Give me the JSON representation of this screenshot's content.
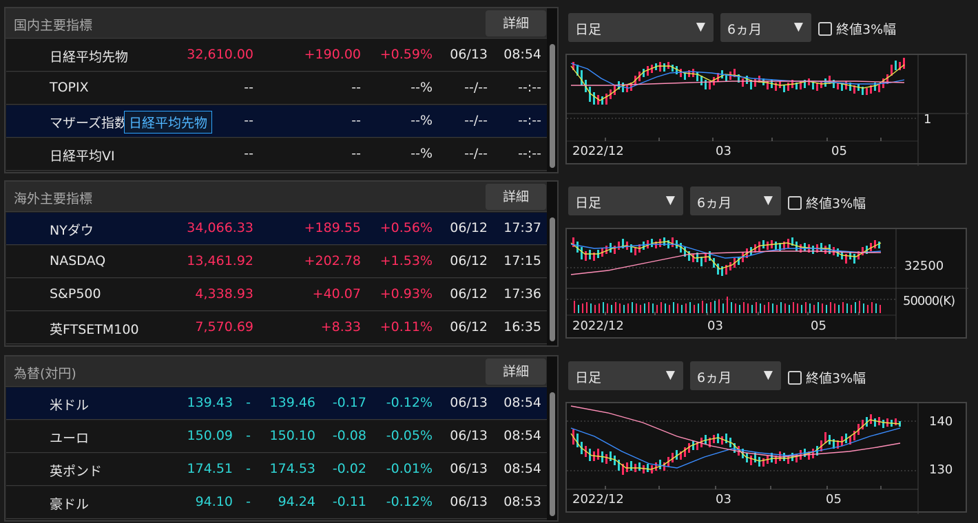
{
  "domestic": {
    "title": "国内主要指標",
    "detail_label": "詳細",
    "rows": [
      {
        "name": "日経平均先物",
        "price": "32,610.00",
        "change": "+190.00",
        "pct": "+0.59%",
        "date": "06/13",
        "time": "08:54"
      },
      {
        "name": "TOPIX",
        "price": "--",
        "change": "--",
        "pct": "--%",
        "date": "--/--",
        "time": "--:--"
      },
      {
        "name": "マザーズ指数",
        "price": "--",
        "change": "--",
        "pct": "--%",
        "date": "--/--",
        "time": "--:--"
      },
      {
        "name": "日経平均VI",
        "price": "--",
        "change": "--",
        "pct": "--%",
        "date": "--/--",
        "time": "--:--"
      }
    ],
    "tooltip": "日経平均先物"
  },
  "overseas": {
    "title": "海外主要指標",
    "detail_label": "詳細",
    "rows": [
      {
        "name": "NYダウ",
        "price": "34,066.33",
        "change": "+189.55",
        "pct": "+0.56%",
        "date": "06/12",
        "time": "17:37"
      },
      {
        "name": "NASDAQ",
        "price": "13,461.92",
        "change": "+202.78",
        "pct": "+1.53%",
        "date": "06/12",
        "time": "17:15"
      },
      {
        "name": "S&P500",
        "price": "4,338.93",
        "change": "+40.07",
        "pct": "+0.93%",
        "date": "06/12",
        "time": "17:36"
      },
      {
        "name": "英FTSETM100",
        "price": "7,570.69",
        "change": "+8.33",
        "pct": "+0.11%",
        "date": "06/12",
        "time": "16:35"
      }
    ]
  },
  "fx": {
    "title": "為替(対円)",
    "detail_label": "詳細",
    "rows": [
      {
        "name": "米ドル",
        "bid": "139.43",
        "dash": "-",
        "ask": "139.46",
        "change": "-0.17",
        "pct": "-0.12%",
        "date": "06/13",
        "time": "08:54"
      },
      {
        "name": "ユーロ",
        "bid": "150.09",
        "dash": "-",
        "ask": "150.10",
        "change": "-0.08",
        "pct": "-0.05%",
        "date": "06/13",
        "time": "08:54"
      },
      {
        "name": "英ポンド",
        "bid": "174.51",
        "dash": "-",
        "ask": "174.53",
        "change": "-0.02",
        "pct": "-0.01%",
        "date": "06/13",
        "time": "08:54"
      },
      {
        "name": "豪ドル",
        "bid": "94.10",
        "dash": "-",
        "ask": "94.24",
        "change": "-0.11",
        "pct": "-0.12%",
        "date": "06/13",
        "time": "08:53"
      }
    ]
  },
  "charts": [
    {
      "period": "日足",
      "range": "6ヵ月",
      "checkbox": "終値3%幅",
      "x_labels": [
        "2022/12",
        "03",
        "05"
      ],
      "y_labels": [
        "1"
      ]
    },
    {
      "period": "日足",
      "range": "6ヵ月",
      "checkbox": "終値3%幅",
      "x_labels": [
        "2022/12",
        "03",
        "05"
      ],
      "y_labels": [
        "32500",
        "50000(K)"
      ]
    },
    {
      "period": "日足",
      "range": "6ヵ月",
      "checkbox": "終値3%幅",
      "x_labels": [
        "2022/12",
        "03",
        "05"
      ],
      "y_labels": [
        "140",
        "130"
      ]
    }
  ],
  "colors": {
    "up": "#ff2d5f",
    "fx": "#2fd6d6",
    "selected_row": "#06112f",
    "tooltip": "#2ea6ff"
  },
  "icons": {
    "dropdown": "triangle-down-icon",
    "checkbox": "checkbox-icon"
  }
}
